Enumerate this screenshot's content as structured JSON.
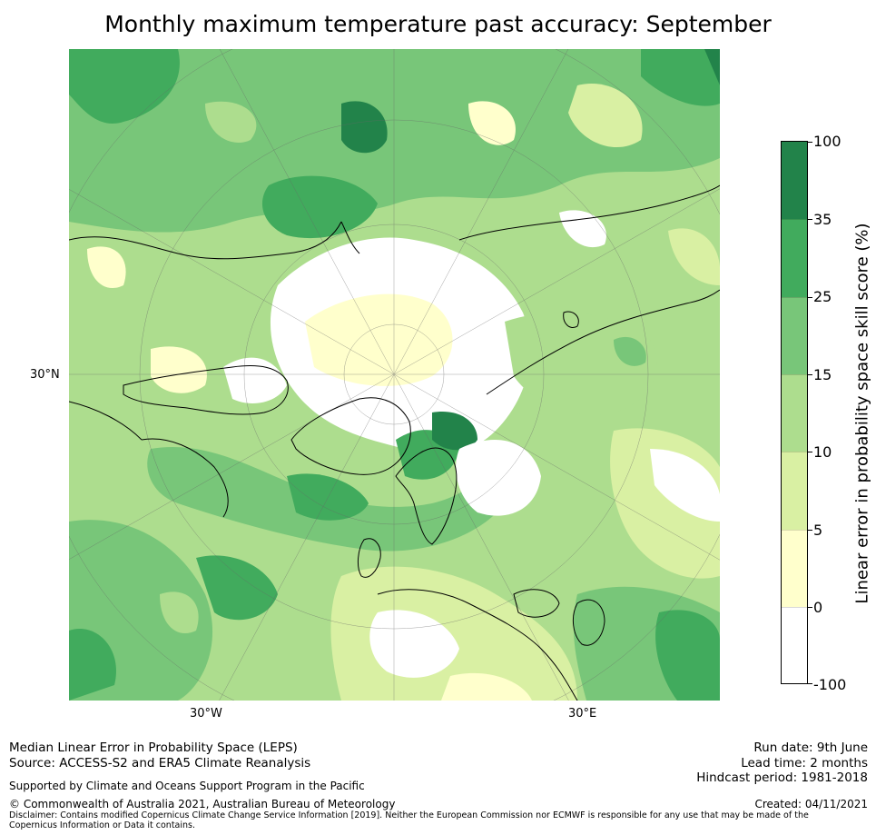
{
  "title": "Monthly maximum temperature past accuracy: September",
  "map": {
    "projection": "north polar stereographic",
    "region": "Northern Hemisphere (Arctic-centred)",
    "gridline_labels": {
      "left": "30°N",
      "bottom_left": "30°W",
      "bottom_right": "30°E"
    }
  },
  "colorbar": {
    "label": "Linear error in probability space skill score (%)",
    "tick_labels": [
      "100",
      "35",
      "25",
      "15",
      "10",
      "5",
      "0",
      "-100"
    ],
    "bins": [
      {
        "range": "35 to 100",
        "color": "#22834A"
      },
      {
        "range": "25 to 35",
        "color": "#41AB5D"
      },
      {
        "range": "15 to 25",
        "color": "#78C679"
      },
      {
        "range": "10 to 15",
        "color": "#ADDD8E"
      },
      {
        "range": "5 to 10",
        "color": "#D9F0A3"
      },
      {
        "range": "0 to 5",
        "color": "#FFFFCC"
      },
      {
        "range": "-100 to 0",
        "color": "#FFFFFF"
      }
    ]
  },
  "footer": {
    "line1": "Median Linear Error in Probability Space (LEPS)",
    "line2": "Source: ACCESS-S2 and ERA5 Climate Reanalysis",
    "support": "Supported by Climate and Oceans Support Program in the Pacific",
    "copyright": "© Commonwealth of Australia 2021, Australian Bureau of Meteorology",
    "disclaimer": "Disclaimer: Contains modified Copernicus Climate Change Service Information [2019]. Neither the European Commission nor ECMWF is responsible for any use that may be made of the Copernicus Information or Data it contains.",
    "run_date": "Run date: 9th June",
    "lead_time": "Lead time: 2 months",
    "hindcast": "Hindcast period: 1981-2018",
    "created": "Created: 04/11/2021"
  }
}
